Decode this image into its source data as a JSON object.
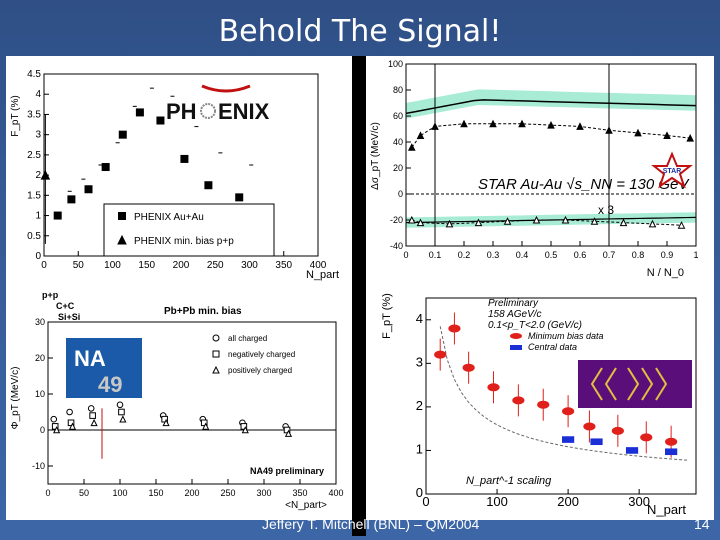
{
  "slide": {
    "title": "Behold The Signal!",
    "footer_center": "Jeffery T. Mitchell (BNL) – QM2004",
    "page_number": "14"
  },
  "colors": {
    "background": "#365c98",
    "star_band": "#a8ecd6",
    "ceres_red": "#e0201a",
    "ceres_blue": "#1a2fd6",
    "ceres_logo_bg": "#5a0e7a",
    "ceres_logo_arrows": "#e0c040",
    "na49_logo": "#1a5aa8"
  },
  "chart_data": [
    {
      "id": "phenix",
      "type": "scatter",
      "title": "",
      "logo_text": [
        "PH",
        "ENIX"
      ],
      "xlabel": "N_part",
      "ylabel": "F_pT (%)",
      "xlim": [
        0,
        400
      ],
      "ylim": [
        0,
        4.5
      ],
      "x_ticks": [
        "0",
        "50",
        "100",
        "150",
        "200",
        "250",
        "300",
        "350",
        "400"
      ],
      "y_ticks": [
        "0",
        "0.5",
        "1",
        "1.5",
        "2",
        "2.5",
        "3",
        "3.5",
        "4",
        "4.5"
      ],
      "legend": [
        "PHENIX Au+Au",
        "PHENIX min. bias p+p"
      ],
      "series": [
        {
          "name": "PHENIX Au+Au",
          "marker": "square",
          "x": [
            20,
            40,
            65,
            90,
            115,
            140,
            170,
            205,
            240,
            285
          ],
          "y": [
            1.0,
            1.4,
            1.65,
            2.2,
            3.0,
            3.55,
            3.35,
            2.4,
            1.75,
            1.45
          ],
          "sys_up": [
            0.6,
            0.5,
            0.6,
            0.6,
            0.7,
            0.6,
            0.6,
            0.8,
            0.8,
            0.8
          ]
        },
        {
          "name": "PHENIX min. bias p+p",
          "marker": "triangle",
          "x": [
            2
          ],
          "y": [
            2.0
          ]
        }
      ]
    },
    {
      "id": "star",
      "type": "line",
      "title": "",
      "label": "STAR Au-Au √s_NN = 130 GeV",
      "annotation": "x 3",
      "logo_text": "STAR",
      "xlabel": "N / N_0",
      "ylabel": "Δσ_pT (MeV/c)",
      "xlim": [
        0,
        1
      ],
      "ylim": [
        -40,
        100
      ],
      "x_ticks": [
        "0",
        "0.1",
        "0.2",
        "0.3",
        "0.4",
        "0.5",
        "0.6",
        "0.7",
        "0.8",
        "0.9",
        "1"
      ],
      "y_ticks": [
        "-40",
        "-20",
        "0",
        "20",
        "40",
        "60",
        "80",
        "100"
      ],
      "series": [
        {
          "name": "",
          "marker": "triangle",
          "x": [
            0.02,
            0.05,
            0.1,
            0.2,
            0.3,
            0.4,
            0.5,
            0.6,
            0.7,
            0.8,
            0.9,
            0.98
          ],
          "y": [
            36,
            45,
            52,
            54,
            54,
            54,
            53,
            52,
            49,
            47,
            45,
            43
          ]
        },
        {
          "name": "",
          "marker": "triangle",
          "x": [
            0.02,
            0.05,
            0.15,
            0.25,
            0.35,
            0.45,
            0.55,
            0.65,
            0.75,
            0.85,
            0.95
          ],
          "y": [
            -20,
            -22,
            -23,
            -22,
            -21,
            -20,
            -20,
            -21,
            -22,
            -23,
            -24
          ]
        }
      ]
    },
    {
      "id": "na49",
      "type": "scatter",
      "title": "",
      "label": "NA49 preliminary",
      "logo_text": [
        "NA",
        "49"
      ],
      "xlabel": "<N_part>",
      "ylabel": "Φ_pT (MeV/c)",
      "xlim": [
        0,
        400
      ],
      "ylim": [
        -15,
        30
      ],
      "x_ticks": [
        "0",
        "50",
        "100",
        "150",
        "200",
        "250",
        "300",
        "350",
        "400"
      ],
      "y_ticks": [
        "-10",
        "0",
        "10",
        "20",
        "30"
      ],
      "system_labels": [
        "p+p",
        "C+C",
        "Si+Si",
        "Pb+Pb min. bias"
      ],
      "legend": [
        "all charged",
        "negatively charged",
        "positively charged"
      ],
      "series": [
        {
          "name": "all charged",
          "marker": "circle",
          "x": [
            8,
            30,
            60,
            100,
            160,
            215,
            270,
            330
          ],
          "y": [
            3,
            5,
            6,
            7,
            4,
            3,
            2,
            1
          ]
        },
        {
          "name": "negatively charged",
          "marker": "square",
          "x": [
            10,
            32,
            62,
            102,
            162,
            217,
            272,
            332
          ],
          "y": [
            1,
            2,
            4,
            5,
            3,
            2,
            1,
            0
          ]
        },
        {
          "name": "positively charged",
          "marker": "triangle",
          "x": [
            12,
            34,
            64,
            104,
            164,
            219,
            274,
            334
          ],
          "y": [
            0,
            1,
            2,
            3,
            2,
            1,
            0,
            -1
          ]
        }
      ]
    },
    {
      "id": "ceres",
      "type": "scatter",
      "title": "",
      "label_lines": [
        "Preliminary",
        "158 AGeV/c",
        "0.1<p_T<2.0 (GeV/c)"
      ],
      "legend": [
        "Minimum bias data",
        "Central data"
      ],
      "curve_label": "N_part^-1 scaling",
      "xlabel": "N_part",
      "ylabel": "F_pT (%)",
      "xlim": [
        0,
        380
      ],
      "ylim": [
        0,
        4.5
      ],
      "x_ticks": [
        "0",
        "100",
        "200",
        "300"
      ],
      "y_ticks": [
        "0",
        "1",
        "2",
        "3",
        "4"
      ],
      "series": [
        {
          "name": "Minimum bias data",
          "marker": "ellipse",
          "x": [
            20,
            40,
            60,
            95,
            130,
            165,
            200,
            230,
            270,
            310,
            345
          ],
          "y": [
            3.2,
            3.8,
            2.9,
            2.45,
            2.15,
            2.05,
            1.9,
            1.55,
            1.45,
            1.3,
            1.2
          ]
        },
        {
          "name": "Central data",
          "marker": "bar",
          "x": [
            200,
            240,
            290,
            345
          ],
          "y": [
            1.25,
            1.2,
            1.0,
            0.97
          ]
        }
      ]
    }
  ]
}
